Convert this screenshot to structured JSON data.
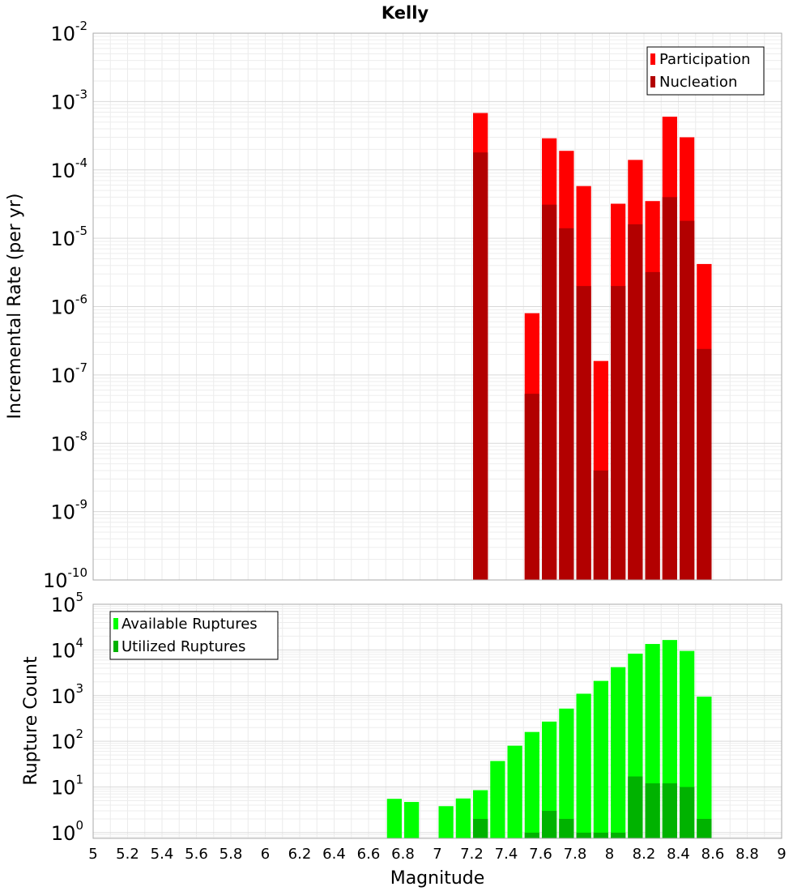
{
  "chart_data": {
    "title": "Kelly",
    "xlabel": "Magnitude",
    "xlim": [
      5,
      9
    ],
    "x_ticks": [
      "5",
      "5.2",
      "5.4",
      "5.6",
      "5.8",
      "6",
      "6.2",
      "6.4",
      "6.6",
      "6.8",
      "7",
      "7.2",
      "7.4",
      "7.6",
      "7.8",
      "8",
      "8.2",
      "8.4",
      "8.6",
      "8.8",
      "9"
    ],
    "grid": true,
    "panels": [
      {
        "type": "bar",
        "ylabel": "Incremental Rate (per yr)",
        "yscale": "log",
        "ylim": [
          1e-10,
          0.01
        ],
        "legend_position": "top-right",
        "y_ticks": [
          {
            "base": "10",
            "exp": "-10"
          },
          {
            "base": "10",
            "exp": "-9"
          },
          {
            "base": "10",
            "exp": "-8"
          },
          {
            "base": "10",
            "exp": "-7"
          },
          {
            "base": "10",
            "exp": "-6"
          },
          {
            "base": "10",
            "exp": "-5"
          },
          {
            "base": "10",
            "exp": "-4"
          },
          {
            "base": "10",
            "exp": "-3"
          },
          {
            "base": "10",
            "exp": "-2"
          }
        ],
        "series": [
          {
            "name": "Participation",
            "color": "#ff0000",
            "x": [
              7.25,
              7.55,
              7.65,
              7.75,
              7.85,
              7.95,
              8.05,
              8.15,
              8.25,
              8.35,
              8.45,
              8.55
            ],
            "values": [
              0.00068,
              8e-07,
              0.00029,
              0.00019,
              5.8e-05,
              1.6e-07,
              3.2e-05,
              0.00014,
              3.5e-05,
              0.0006,
              0.0003,
              4.2e-06
            ]
          },
          {
            "name": "Nucleation",
            "color": "#b20000",
            "x": [
              7.25,
              7.55,
              7.65,
              7.75,
              7.85,
              7.95,
              8.05,
              8.15,
              8.25,
              8.35,
              8.45,
              8.55
            ],
            "values": [
              0.00018,
              5.3e-08,
              3.1e-05,
              1.4e-05,
              2e-06,
              4e-09,
              2e-06,
              1.6e-05,
              3.2e-06,
              4e-05,
              1.8e-05,
              2.4e-07
            ]
          }
        ]
      },
      {
        "type": "bar",
        "ylabel": "Rupture Count",
        "yscale": "log",
        "ylim": [
          0.75,
          100000
        ],
        "legend_position": "top-left",
        "y_ticks": [
          {
            "base": "10",
            "exp": "0"
          },
          {
            "base": "10",
            "exp": "1"
          },
          {
            "base": "10",
            "exp": "2"
          },
          {
            "base": "10",
            "exp": "3"
          },
          {
            "base": "10",
            "exp": "4"
          },
          {
            "base": "10",
            "exp": "5"
          }
        ],
        "series": [
          {
            "name": "Available Ruptures",
            "color": "#00ff00",
            "x": [
              6.75,
              6.85,
              6.95,
              7.05,
              7.15,
              7.25,
              7.35,
              7.45,
              7.55,
              7.65,
              7.75,
              7.85,
              7.95,
              8.05,
              8.15,
              8.25,
              8.35,
              8.45,
              8.55
            ],
            "values": [
              5.5,
              4.7,
              0,
              3.8,
              5.6,
              8.5,
              37,
              80,
              160,
              270,
              520,
              1100,
              2100,
              4200,
              8300,
              13500,
              16500,
              9500,
              950
            ]
          },
          {
            "name": "Utilized Ruptures",
            "color": "#00b200",
            "x": [
              6.75,
              6.85,
              6.95,
              7.05,
              7.15,
              7.25,
              7.35,
              7.45,
              7.55,
              7.65,
              7.75,
              7.85,
              7.95,
              8.05,
              8.15,
              8.25,
              8.35,
              8.45,
              8.55
            ],
            "values": [
              0,
              0,
              0,
              0,
              0,
              2,
              0,
              0,
              1,
              3,
              2,
              1,
              1,
              1,
              17,
              12,
              12,
              10,
              2
            ]
          }
        ]
      }
    ]
  }
}
